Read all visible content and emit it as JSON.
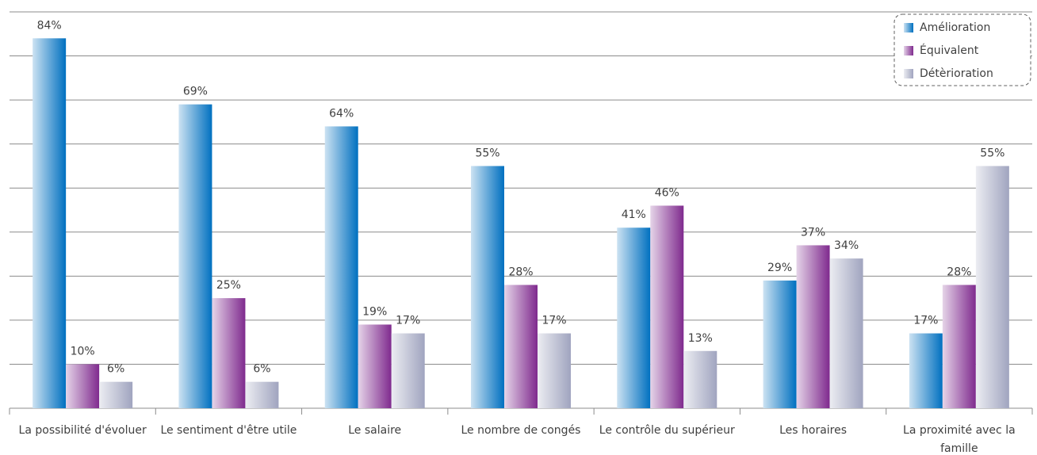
{
  "chart_data": {
    "type": "bar",
    "categories": [
      "La possibilité d'évoluer",
      "Le sentiment d'être utile",
      "Le salaire",
      "Le nombre de congés",
      "Le contrôle du supérieur",
      "Les horaires",
      "La proximité avec la famille"
    ],
    "series": [
      {
        "name": "Amélioration",
        "color": "#0070c0",
        "values": [
          84,
          69,
          64,
          55,
          41,
          29,
          17
        ],
        "value_labels": [
          "84%",
          "69%",
          "64%",
          "55%",
          "41%",
          "29%",
          "17%"
        ]
      },
      {
        "name": "Équivalent",
        "color": "#7f2a8e",
        "values": [
          10,
          25,
          19,
          28,
          46,
          37,
          28
        ],
        "value_labels": [
          "10%",
          "25%",
          "19%",
          "28%",
          "46%",
          "37%",
          "28%"
        ]
      },
      {
        "name": "Détèrioration",
        "color": "#a0a4bf",
        "values": [
          6,
          6,
          17,
          17,
          13,
          34,
          55
        ],
        "value_labels": [
          "6%",
          "6%",
          "17%",
          "17%",
          "13%",
          "34%",
          "55%"
        ]
      }
    ],
    "ylim": [
      0,
      90
    ],
    "yticks": [
      0,
      10,
      20,
      30,
      40,
      50,
      60,
      70,
      80,
      90
    ],
    "grid": true,
    "legend": "top-right"
  }
}
